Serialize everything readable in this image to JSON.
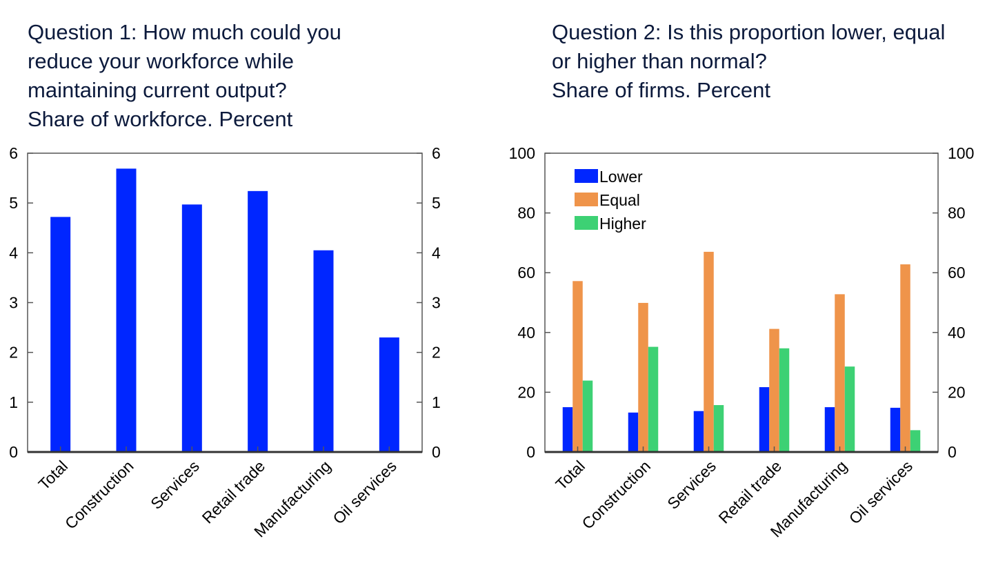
{
  "chart_data": [
    {
      "type": "bar",
      "title": "Question 1: How much could you reduce your workforce while maintaining current output?\nShare of workforce. Percent",
      "categories": [
        "Total",
        "Construction",
        "Services",
        "Retail trade",
        "Manufacturing",
        "Oil services"
      ],
      "series": [
        {
          "values": [
            4.72,
            5.69,
            4.97,
            5.24,
            4.05,
            2.3
          ],
          "color": "#0026ff"
        }
      ],
      "ylim": [
        0,
        6
      ],
      "yticks": [
        0,
        1,
        2,
        3,
        4,
        5,
        6
      ],
      "xlabel": "",
      "ylabel": "",
      "grid": false,
      "dual_y_axis": true
    },
    {
      "type": "bar",
      "title": "Question 2: Is this proportion lower, equal or higher than normal?\nShare of firms. Percent",
      "categories": [
        "Total",
        "Construction",
        "Services",
        "Retail trade",
        "Manufacturing",
        "Oil services"
      ],
      "series": [
        {
          "name": "Lower",
          "values": [
            15.0,
            13.2,
            13.7,
            21.7,
            15.0,
            14.8
          ],
          "color": "#0026ff"
        },
        {
          "name": "Equal",
          "values": [
            57.2,
            49.9,
            67.0,
            41.2,
            52.8,
            62.8
          ],
          "color": "#ef944a"
        },
        {
          "name": "Higher",
          "values": [
            23.9,
            35.2,
            15.7,
            34.7,
            28.6,
            7.3
          ],
          "color": "#3dd174"
        }
      ],
      "ylim": [
        0,
        100
      ],
      "yticks": [
        0,
        20,
        40,
        60,
        80,
        100
      ],
      "xlabel": "",
      "ylabel": "",
      "grid": false,
      "legend": "top-left",
      "dual_y_axis": true
    }
  ]
}
